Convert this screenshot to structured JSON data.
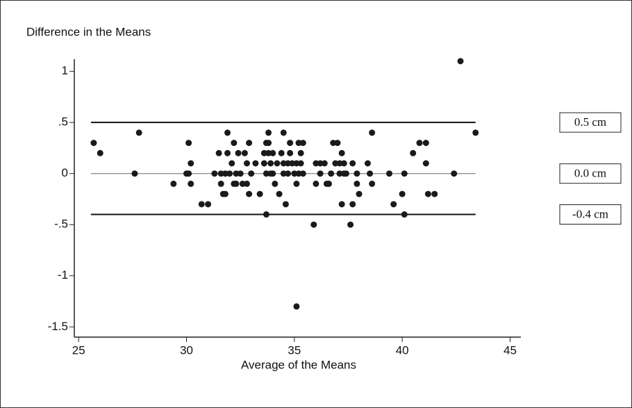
{
  "chart_data": {
    "type": "scatter",
    "title": "Difference in the Means",
    "x_label": "Average of the Means",
    "x": [
      25.7,
      26.0,
      27.8,
      27.6,
      29.4,
      30.0,
      30.1,
      30.1,
      30.2,
      30.2,
      30.7,
      31.0,
      31.3,
      31.5,
      31.6,
      31.6,
      31.7,
      31.8,
      31.8,
      31.9,
      31.9,
      32.0,
      32.1,
      32.2,
      32.2,
      32.3,
      32.3,
      32.4,
      32.5,
      32.6,
      32.7,
      32.8,
      32.8,
      32.9,
      32.9,
      33.0,
      33.2,
      33.4,
      33.6,
      33.6,
      33.7,
      33.7,
      33.7,
      33.8,
      33.8,
      33.8,
      33.9,
      33.9,
      34.0,
      34.0,
      34.1,
      34.2,
      34.3,
      34.4,
      34.5,
      34.5,
      34.5,
      34.6,
      34.7,
      34.7,
      34.8,
      34.8,
      34.9,
      35.0,
      35.1,
      35.1,
      35.2,
      35.2,
      35.3,
      35.3,
      35.4,
      35.4,
      35.1,
      35.9,
      36.0,
      36.0,
      36.2,
      36.2,
      36.4,
      36.5,
      36.6,
      36.7,
      36.8,
      36.9,
      37.0,
      37.1,
      37.1,
      37.2,
      37.2,
      37.3,
      37.3,
      37.4,
      37.6,
      37.7,
      37.7,
      37.9,
      37.9,
      38.0,
      38.4,
      38.5,
      38.6,
      38.6,
      39.4,
      39.6,
      40.0,
      40.1,
      40.1,
      40.5,
      40.8,
      41.1,
      41.1,
      41.2,
      41.5,
      42.4,
      42.7,
      43.4
    ],
    "values": [
      0.3,
      0.2,
      0.4,
      0,
      -0.1,
      0,
      0.3,
      0,
      0.1,
      -0.1,
      -0.3,
      -0.3,
      0,
      0.2,
      -0.1,
      0,
      -0.2,
      -0.2,
      0,
      0.4,
      0.2,
      0,
      0.1,
      -0.1,
      0.3,
      0,
      -0.1,
      0.2,
      0,
      -0.1,
      0.2,
      0.1,
      -0.1,
      0.3,
      -0.2,
      0,
      0.1,
      -0.2,
      0.2,
      0.1,
      0,
      -0.4,
      0.3,
      0.3,
      0.4,
      0.2,
      0,
      0.1,
      0.2,
      0,
      -0.1,
      0.1,
      -0.2,
      0.2,
      0.4,
      0.1,
      0,
      -0.3,
      0.1,
      0,
      0.2,
      0.3,
      0.1,
      0,
      -0.1,
      0.1,
      0,
      0.3,
      0.2,
      0.1,
      0,
      0.3,
      -1.3,
      -0.5,
      -0.1,
      0.1,
      0,
      0.1,
      0.1,
      -0.1,
      -0.1,
      0,
      0.3,
      0.1,
      0.3,
      0,
      0.1,
      -0.3,
      0.2,
      0,
      0.1,
      0,
      -0.5,
      0.1,
      -0.3,
      -0.1,
      0,
      -0.2,
      0.1,
      0,
      0.4,
      -0.1,
      0,
      -0.3,
      -0.2,
      0,
      -0.4,
      0.2,
      0.3,
      0.1,
      0.3,
      -0.2,
      -0.2,
      0,
      1.1,
      0.4
    ],
    "color": "#1a1a1a",
    "reference_lines": [
      {
        "value": 0.5,
        "label": "0.5 cm"
      },
      {
        "value": 0,
        "label": "0.0 cm"
      },
      {
        "value": -0.4,
        "label": "-0.4 cm"
      }
    ],
    "xlim": [
      24.8,
      45.5
    ],
    "xticks": [
      25,
      30,
      35,
      40,
      45
    ],
    "ylim": [
      -1.6,
      1.12
    ],
    "yticks": [
      1,
      {
        "value": 0.5,
        "label": ".5"
      },
      0,
      {
        "value": -0.5,
        "label": "-.5"
      },
      -1,
      -1.5
    ]
  }
}
